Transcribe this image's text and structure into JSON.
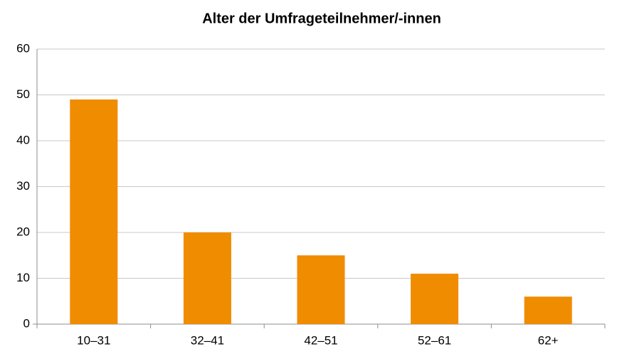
{
  "chart_data": {
    "type": "bar",
    "title": "Alter der Umfrageteilnehmer/-innen",
    "categories": [
      "10–31",
      "32–41",
      "42–51",
      "52–61",
      "62+"
    ],
    "values": [
      49,
      20,
      15,
      11,
      6
    ],
    "color": "#f08c00",
    "ylim": [
      0,
      60
    ],
    "yticks": [
      0,
      10,
      20,
      30,
      40,
      50,
      60
    ],
    "grid": true
  }
}
